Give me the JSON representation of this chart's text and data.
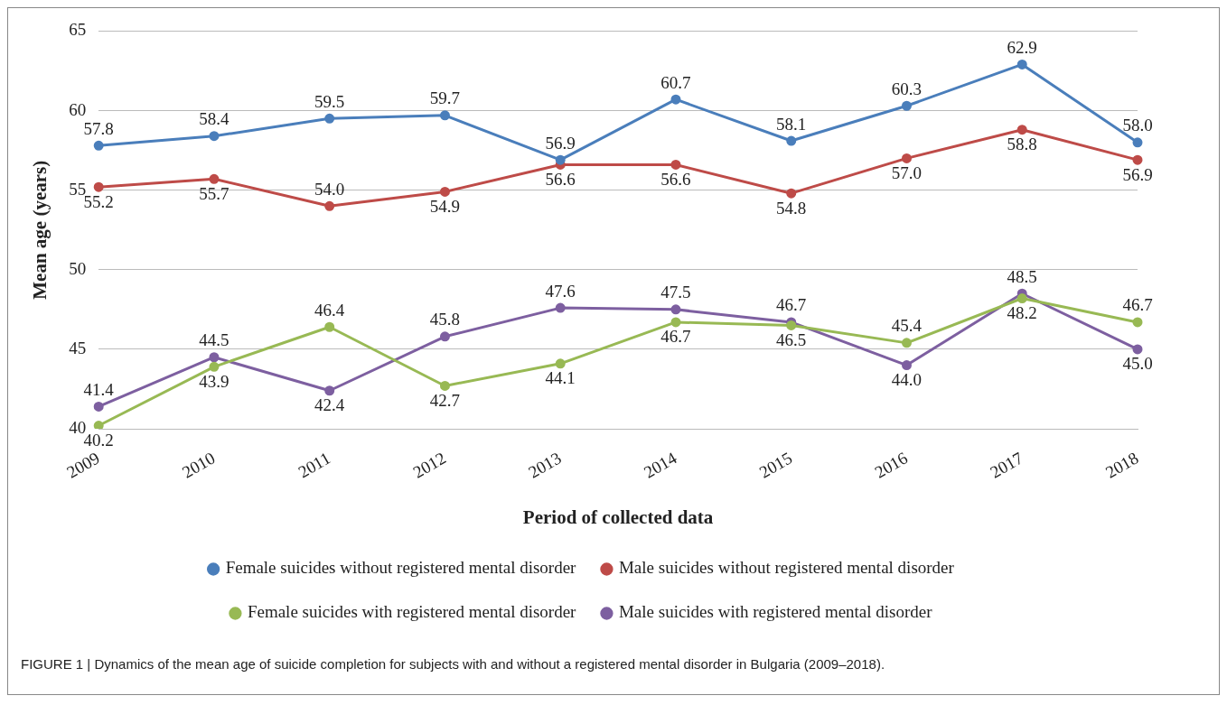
{
  "chart_data": {
    "type": "line",
    "xlabel": "Period of collected data",
    "ylabel": "Mean age (years)",
    "categories": [
      "2009",
      "2010",
      "2011",
      "2012",
      "2013",
      "2014",
      "2015",
      "2016",
      "2017",
      "2018"
    ],
    "series": [
      {
        "name": "Female suicides without registered mental disorder",
        "color": "#4a7ebb",
        "values": [
          57.8,
          58.4,
          59.5,
          59.7,
          56.9,
          60.7,
          58.1,
          60.3,
          62.9,
          58.0
        ],
        "value_labels": [
          "57.8",
          "58.4",
          "59.5",
          "59.7",
          "56.9",
          "60.7",
          "58.1",
          "60.3",
          "62.9",
          "58.0"
        ]
      },
      {
        "name": "Male suicides without registered mental disorder",
        "color": "#be4b48",
        "values": [
          55.2,
          55.7,
          54.0,
          54.9,
          56.6,
          56.6,
          54.8,
          57.0,
          58.8,
          56.9
        ],
        "value_labels": [
          "55.2",
          "55.7",
          "54.0",
          "54.9",
          "56.6",
          "56.6",
          "54.8",
          "57.0",
          "58.8",
          "56.9"
        ]
      },
      {
        "name": "Female suicides with registered mental disorder",
        "color": "#98b954",
        "values": [
          40.2,
          43.9,
          46.4,
          42.7,
          44.1,
          46.7,
          46.5,
          45.4,
          48.2,
          46.7
        ],
        "value_labels": [
          "40.2",
          "43.9",
          "46.4",
          "42.7",
          "44.1",
          "46.7",
          "46.5",
          "45.4",
          "48.2",
          "46.7"
        ]
      },
      {
        "name": "Male suicides with registered mental disorder",
        "color": "#7d5fa0",
        "values": [
          41.4,
          44.5,
          42.4,
          45.8,
          47.6,
          47.5,
          46.7,
          44.0,
          48.5,
          45.0
        ],
        "value_labels": [
          "41.4",
          "44.5",
          "42.4",
          "45.8",
          "47.6",
          "47.5",
          "46.7",
          "44.0",
          "48.5",
          "45.0"
        ]
      }
    ],
    "ylim": [
      40,
      65
    ],
    "yticks": [
      40,
      45,
      50,
      55,
      60,
      65
    ],
    "grid": "y",
    "legend": "bottom",
    "marker": "circle",
    "line_style": "solid",
    "annotations": [
      "FIGURE 1 | Dynamics of the mean age of suicide completion for subjects with and without a registered mental disorder in Bulgaria (2009–2018)."
    ]
  }
}
